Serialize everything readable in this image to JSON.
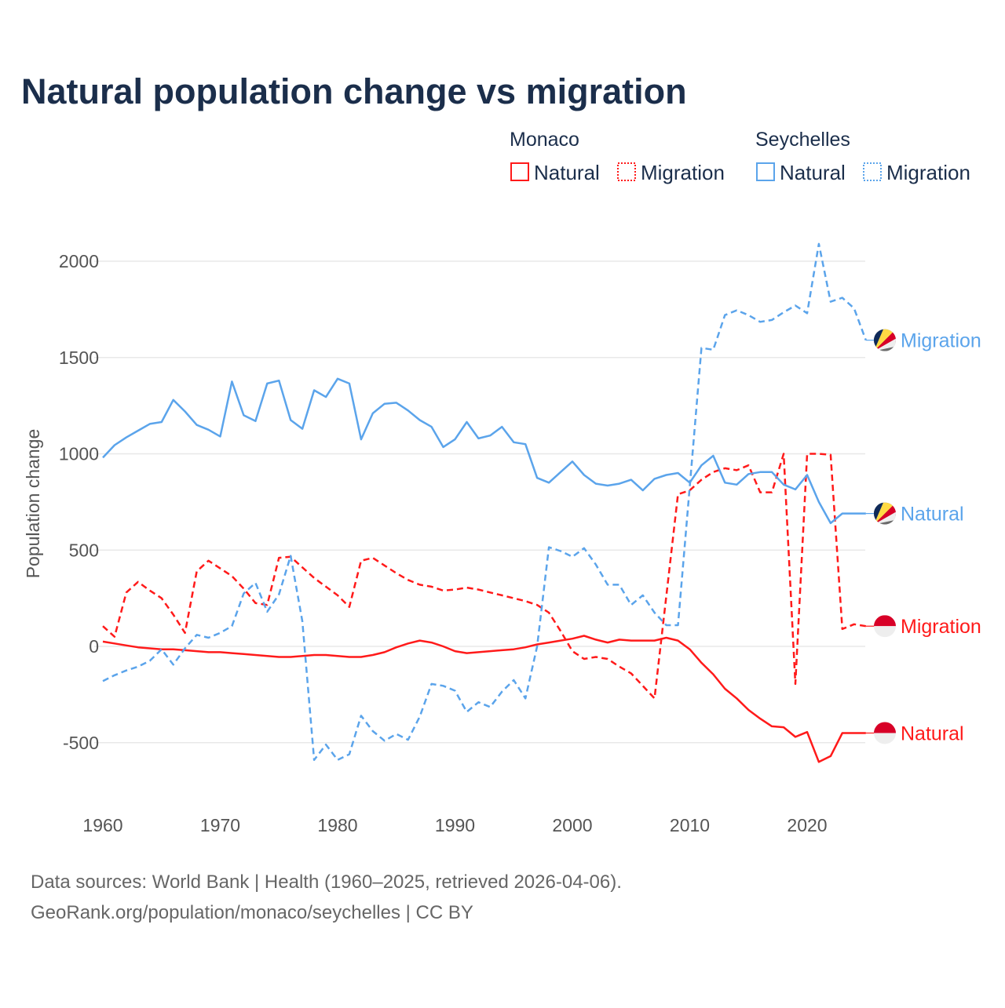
{
  "chart_data": {
    "type": "line",
    "title": "Natural population change vs migration",
    "xlabel": "",
    "ylabel": "Population change",
    "xlim": [
      1960,
      2025
    ],
    "ylim": [
      -750,
      2100
    ],
    "x_ticks": [
      1960,
      1970,
      1980,
      1990,
      2000,
      2010,
      2020
    ],
    "y_ticks": [
      -500,
      0,
      500,
      1000,
      1500,
      2000
    ],
    "grid": true,
    "legend": {
      "placement": "top-right",
      "groups": [
        {
          "title": "Monaco",
          "items": [
            "Natural",
            "Migration"
          ]
        },
        {
          "title": "Seychelles",
          "items": [
            "Natural",
            "Migration"
          ]
        }
      ]
    },
    "x": [
      1960,
      1961,
      1962,
      1963,
      1964,
      1965,
      1966,
      1967,
      1968,
      1969,
      1970,
      1971,
      1972,
      1973,
      1974,
      1975,
      1976,
      1977,
      1978,
      1979,
      1980,
      1981,
      1982,
      1983,
      1984,
      1985,
      1986,
      1987,
      1988,
      1989,
      1990,
      1991,
      1992,
      1993,
      1994,
      1995,
      1996,
      1997,
      1998,
      1999,
      2000,
      2001,
      2002,
      2003,
      2004,
      2005,
      2006,
      2007,
      2008,
      2009,
      2010,
      2011,
      2012,
      2013,
      2014,
      2015,
      2016,
      2017,
      2018,
      2019,
      2020,
      2021,
      2022,
      2023,
      2024,
      2025
    ],
    "series": [
      {
        "name": "Natural",
        "country": "Monaco",
        "color": "#ff1a1a",
        "dashed": false,
        "end_label": "Natural",
        "values": [
          25,
          15,
          5,
          -5,
          -10,
          -15,
          -15,
          -20,
          -25,
          -30,
          -30,
          -35,
          -40,
          -45,
          -50,
          -55,
          -55,
          -50,
          -45,
          -45,
          -50,
          -55,
          -55,
          -45,
          -30,
          -5,
          15,
          30,
          20,
          0,
          -25,
          -35,
          -30,
          -25,
          -20,
          -15,
          -5,
          10,
          20,
          30,
          40,
          55,
          35,
          20,
          35,
          30,
          30,
          30,
          45,
          30,
          -15,
          -85,
          -145,
          -220,
          -270,
          -330,
          -375,
          -415,
          -420,
          -470,
          -445,
          -600,
          -570,
          -450,
          -450,
          -450
        ]
      },
      {
        "name": "Migration",
        "country": "Monaco",
        "color": "#ff1a1a",
        "dashed": true,
        "end_label": "Migration",
        "values": [
          105,
          50,
          280,
          335,
          290,
          250,
          165,
          70,
          390,
          445,
          405,
          365,
          300,
          225,
          215,
          460,
          465,
          410,
          355,
          310,
          265,
          205,
          445,
          460,
          420,
          380,
          345,
          320,
          310,
          290,
          295,
          305,
          295,
          280,
          265,
          250,
          235,
          215,
          175,
          80,
          -25,
          -65,
          -55,
          -65,
          -105,
          -140,
          -205,
          -270,
          260,
          790,
          810,
          865,
          905,
          925,
          915,
          940,
          800,
          800,
          1000,
          -195,
          1000,
          1000,
          995,
          90,
          115,
          105
        ]
      },
      {
        "name": "Natural",
        "country": "Seychelles",
        "color": "#5ba4eb",
        "dashed": false,
        "end_label": "Natural",
        "values": [
          980,
          1045,
          1085,
          1120,
          1155,
          1165,
          1280,
          1220,
          1150,
          1125,
          1090,
          1375,
          1200,
          1170,
          1365,
          1380,
          1175,
          1130,
          1330,
          1295,
          1390,
          1365,
          1075,
          1210,
          1260,
          1265,
          1225,
          1175,
          1140,
          1035,
          1075,
          1165,
          1080,
          1095,
          1140,
          1060,
          1050,
          875,
          850,
          905,
          960,
          890,
          845,
          835,
          845,
          865,
          810,
          870,
          890,
          900,
          850,
          940,
          990,
          850,
          840,
          895,
          905,
          905,
          840,
          815,
          890,
          750,
          640,
          690,
          690,
          690
        ]
      },
      {
        "name": "Migration",
        "country": "Seychelles",
        "color": "#5ba4eb",
        "dashed": true,
        "end_label": "Migration",
        "values": [
          -180,
          -150,
          -125,
          -105,
          -75,
          -15,
          -95,
          -10,
          60,
          45,
          70,
          105,
          275,
          330,
          180,
          270,
          470,
          130,
          -590,
          -510,
          -590,
          -560,
          -360,
          -440,
          -490,
          -455,
          -485,
          -365,
          -195,
          -205,
          -230,
          -340,
          -290,
          -315,
          -235,
          -175,
          -270,
          0,
          515,
          495,
          465,
          510,
          425,
          320,
          320,
          215,
          265,
          175,
          110,
          110,
          830,
          1550,
          1540,
          1720,
          1745,
          1720,
          1685,
          1695,
          1735,
          1770,
          1730,
          2090,
          1790,
          1810,
          1755,
          1590
        ]
      }
    ]
  },
  "footer": {
    "line1": "Data sources: World Bank | Health (1960–2025, retrieved 2026-04-06).",
    "line2": "GeoRank.org/population/monaco/seychelles | CC BY"
  }
}
